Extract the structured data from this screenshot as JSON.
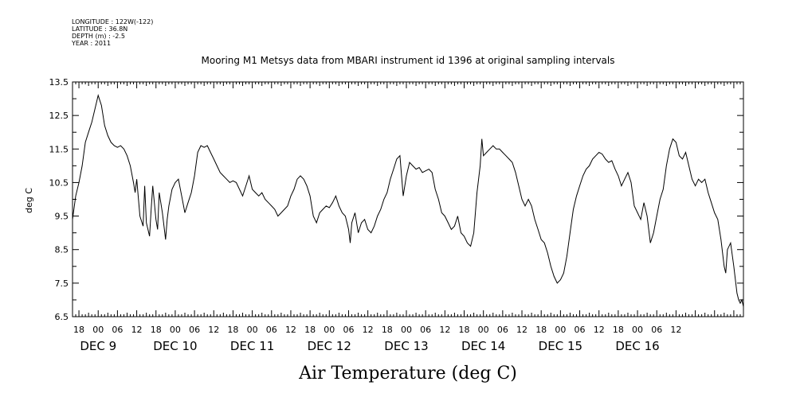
{
  "header": {
    "meta_lines": [
      "LONGITUDE : 122W(-122)",
      "LATITUDE : 36.8N",
      "DEPTH (m) : -2.5",
      "YEAR : 2011"
    ],
    "title": "Mooring M1 Metsys data from MBARI instrument id 1396 at original sampling intervals"
  },
  "caption": "Air Temperature (deg C)",
  "chart_data": {
    "type": "line",
    "ylabel": "deg C",
    "xlabel": "Air Temperature (deg C)",
    "ylim": [
      6.5,
      13.5
    ],
    "xlim_hours": [
      -8,
      201
    ],
    "grid": false,
    "legend": "none",
    "color": "#000000",
    "y_ticks": [
      "6.5",
      "7.5",
      "8.5",
      "9.5",
      "10.5",
      "11.5",
      "12.5",
      "13.5"
    ],
    "hour_labels": [
      "18",
      "00",
      "06",
      "12",
      "18",
      "00",
      "06",
      "12",
      "18",
      "00",
      "06",
      "12",
      "18",
      "00",
      "06",
      "12",
      "18",
      "00",
      "06",
      "12",
      "18",
      "00",
      "06",
      "12",
      "18",
      "00",
      "06",
      "12",
      "18",
      "00",
      "06",
      "12"
    ],
    "day_labels": [
      "DEC 9",
      "DEC 10",
      "DEC 11",
      "DEC 12",
      "DEC 13",
      "DEC 14",
      "DEC 15",
      "DEC 16"
    ],
    "series": [
      {
        "values": [
          [
            -8,
            9.4
          ],
          [
            -7,
            10.1
          ],
          [
            -6,
            10.5
          ],
          [
            -5,
            11.0
          ],
          [
            -4,
            11.7
          ],
          [
            -3,
            12.0
          ],
          [
            -2,
            12.3
          ],
          [
            -1,
            12.7
          ],
          [
            0,
            13.1
          ],
          [
            1,
            12.8
          ],
          [
            2,
            12.2
          ],
          [
            3,
            11.9
          ],
          [
            4,
            11.7
          ],
          [
            5,
            11.6
          ],
          [
            6,
            11.55
          ],
          [
            7,
            11.6
          ],
          [
            8,
            11.5
          ],
          [
            9,
            11.3
          ],
          [
            10,
            11.0
          ],
          [
            11,
            10.5
          ],
          [
            11.5,
            10.2
          ],
          [
            12,
            10.6
          ],
          [
            13,
            9.5
          ],
          [
            14,
            9.2
          ],
          [
            14.5,
            10.4
          ],
          [
            15,
            9.3
          ],
          [
            16,
            8.9
          ],
          [
            16.5,
            9.7
          ],
          [
            17,
            10.4
          ],
          [
            18,
            9.4
          ],
          [
            18.5,
            9.1
          ],
          [
            19,
            10.2
          ],
          [
            20,
            9.6
          ],
          [
            21,
            8.8
          ],
          [
            21.5,
            9.4
          ],
          [
            22,
            9.8
          ],
          [
            23,
            10.3
          ],
          [
            24,
            10.5
          ],
          [
            25,
            10.6
          ],
          [
            26,
            10.1
          ],
          [
            27,
            9.6
          ],
          [
            28,
            9.9
          ],
          [
            29,
            10.2
          ],
          [
            30,
            10.7
          ],
          [
            31,
            11.4
          ],
          [
            32,
            11.6
          ],
          [
            33,
            11.55
          ],
          [
            34,
            11.6
          ],
          [
            35,
            11.4
          ],
          [
            36,
            11.2
          ],
          [
            37,
            11.0
          ],
          [
            38,
            10.8
          ],
          [
            39,
            10.7
          ],
          [
            40,
            10.6
          ],
          [
            41,
            10.5
          ],
          [
            42,
            10.55
          ],
          [
            43,
            10.5
          ],
          [
            44,
            10.3
          ],
          [
            45,
            10.1
          ],
          [
            46,
            10.4
          ],
          [
            47,
            10.7
          ],
          [
            48,
            10.3
          ],
          [
            49,
            10.2
          ],
          [
            50,
            10.1
          ],
          [
            51,
            10.2
          ],
          [
            52,
            10.0
          ],
          [
            53,
            9.9
          ],
          [
            54,
            9.8
          ],
          [
            55,
            9.7
          ],
          [
            56,
            9.5
          ],
          [
            57,
            9.6
          ],
          [
            58,
            9.7
          ],
          [
            59,
            9.8
          ],
          [
            60,
            10.1
          ],
          [
            61,
            10.3
          ],
          [
            62,
            10.6
          ],
          [
            63,
            10.7
          ],
          [
            64,
            10.6
          ],
          [
            65,
            10.4
          ],
          [
            66,
            10.1
          ],
          [
            67,
            9.5
          ],
          [
            68,
            9.3
          ],
          [
            69,
            9.6
          ],
          [
            70,
            9.7
          ],
          [
            71,
            9.8
          ],
          [
            72,
            9.75
          ],
          [
            73,
            9.9
          ],
          [
            74,
            10.1
          ],
          [
            75,
            9.8
          ],
          [
            76,
            9.6
          ],
          [
            77,
            9.5
          ],
          [
            78,
            9.1
          ],
          [
            78.5,
            8.7
          ],
          [
            79,
            9.3
          ],
          [
            80,
            9.6
          ],
          [
            81,
            9.0
          ],
          [
            82,
            9.3
          ],
          [
            83,
            9.4
          ],
          [
            84,
            9.1
          ],
          [
            85,
            9.0
          ],
          [
            86,
            9.2
          ],
          [
            87,
            9.5
          ],
          [
            88,
            9.7
          ],
          [
            89,
            10.0
          ],
          [
            90,
            10.2
          ],
          [
            91,
            10.6
          ],
          [
            92,
            10.9
          ],
          [
            93,
            11.2
          ],
          [
            94,
            11.3
          ],
          [
            95,
            10.1
          ],
          [
            96,
            10.7
          ],
          [
            97,
            11.1
          ],
          [
            98,
            11.0
          ],
          [
            99,
            10.9
          ],
          [
            100,
            10.95
          ],
          [
            101,
            10.8
          ],
          [
            102,
            10.85
          ],
          [
            103,
            10.9
          ],
          [
            104,
            10.8
          ],
          [
            105,
            10.3
          ],
          [
            106,
            10.0
          ],
          [
            107,
            9.6
          ],
          [
            108,
            9.5
          ],
          [
            109,
            9.3
          ],
          [
            110,
            9.1
          ],
          [
            111,
            9.2
          ],
          [
            112,
            9.5
          ],
          [
            113,
            9.0
          ],
          [
            114,
            8.9
          ],
          [
            115,
            8.7
          ],
          [
            116,
            8.6
          ],
          [
            117,
            9.0
          ],
          [
            118,
            10.2
          ],
          [
            119,
            11.0
          ],
          [
            119.5,
            11.8
          ],
          [
            120,
            11.3
          ],
          [
            121,
            11.4
          ],
          [
            122,
            11.5
          ],
          [
            123,
            11.6
          ],
          [
            124,
            11.5
          ],
          [
            125,
            11.5
          ],
          [
            126,
            11.4
          ],
          [
            127,
            11.3
          ],
          [
            128,
            11.2
          ],
          [
            129,
            11.1
          ],
          [
            130,
            10.8
          ],
          [
            131,
            10.4
          ],
          [
            132,
            10.0
          ],
          [
            133,
            9.8
          ],
          [
            134,
            10.0
          ],
          [
            135,
            9.8
          ],
          [
            136,
            9.4
          ],
          [
            137,
            9.1
          ],
          [
            138,
            8.8
          ],
          [
            139,
            8.7
          ],
          [
            140,
            8.4
          ],
          [
            141,
            8.0
          ],
          [
            142,
            7.7
          ],
          [
            143,
            7.5
          ],
          [
            144,
            7.6
          ],
          [
            145,
            7.8
          ],
          [
            146,
            8.3
          ],
          [
            147,
            9.0
          ],
          [
            148,
            9.7
          ],
          [
            149,
            10.1
          ],
          [
            150,
            10.4
          ],
          [
            151,
            10.7
          ],
          [
            152,
            10.9
          ],
          [
            153,
            11.0
          ],
          [
            154,
            11.2
          ],
          [
            155,
            11.3
          ],
          [
            156,
            11.4
          ],
          [
            157,
            11.35
          ],
          [
            158,
            11.2
          ],
          [
            159,
            11.1
          ],
          [
            160,
            11.15
          ],
          [
            161,
            10.9
          ],
          [
            162,
            10.7
          ],
          [
            163,
            10.4
          ],
          [
            164,
            10.6
          ],
          [
            165,
            10.8
          ],
          [
            166,
            10.5
          ],
          [
            167,
            9.8
          ],
          [
            168,
            9.6
          ],
          [
            169,
            9.4
          ],
          [
            170,
            9.9
          ],
          [
            171,
            9.5
          ],
          [
            172,
            8.7
          ],
          [
            173,
            9.0
          ],
          [
            174,
            9.5
          ],
          [
            175,
            10.0
          ],
          [
            176,
            10.3
          ],
          [
            177,
            11.0
          ],
          [
            178,
            11.5
          ],
          [
            179,
            11.8
          ],
          [
            180,
            11.7
          ],
          [
            181,
            11.3
          ],
          [
            182,
            11.2
          ],
          [
            183,
            11.4
          ],
          [
            184,
            11.0
          ],
          [
            185,
            10.6
          ],
          [
            186,
            10.4
          ],
          [
            187,
            10.6
          ],
          [
            188,
            10.5
          ],
          [
            189,
            10.6
          ],
          [
            190,
            10.2
          ],
          [
            191,
            9.9
          ],
          [
            192,
            9.6
          ],
          [
            193,
            9.4
          ],
          [
            194,
            8.8
          ],
          [
            195,
            8.0
          ],
          [
            195.5,
            7.8
          ],
          [
            196,
            8.5
          ],
          [
            197,
            8.7
          ],
          [
            198,
            8.0
          ],
          [
            199,
            7.2
          ],
          [
            199.5,
            7.0
          ],
          [
            200,
            6.9
          ],
          [
            200.5,
            7.0
          ],
          [
            201,
            6.8
          ]
        ]
      }
    ]
  }
}
